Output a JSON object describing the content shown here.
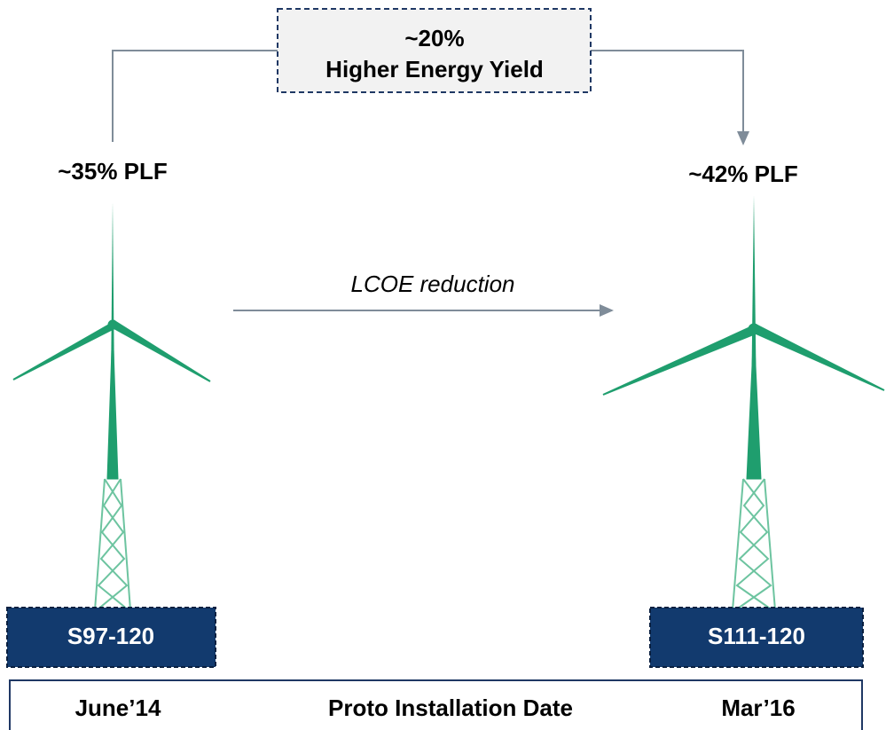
{
  "top_box": {
    "line1": "~20%",
    "line2": "Higher Energy Yield"
  },
  "left": {
    "plf": "~35% PLF",
    "model": "S97-120",
    "date": "June’14"
  },
  "right": {
    "plf": "~42% PLF",
    "model": "S111-120",
    "date": "Mar’16"
  },
  "arrow_label": "LCOE reduction",
  "footer_label": "Proto Installation Date"
}
